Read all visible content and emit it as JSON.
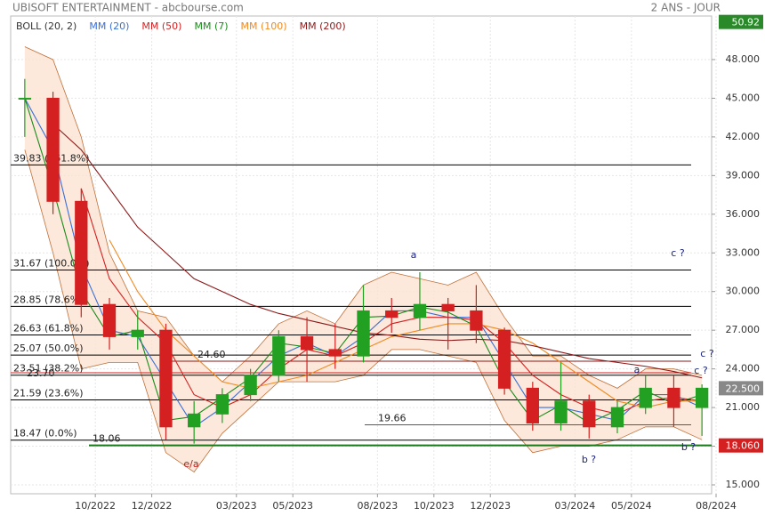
{
  "chart_data": {
    "type": "candlestick",
    "title": "UBISOFT ENTERTAINMENT - abcbourse.com",
    "period": "2 ANS - JOUR",
    "x": [
      "07/2022",
      "08/2022",
      "09/2022",
      "10/2022",
      "11/2022",
      "12/2022",
      "01/2023",
      "02/2023",
      "03/2023",
      "04/2023",
      "05/2023",
      "06/2023",
      "07/2023",
      "08/2023",
      "09/2023",
      "10/2023",
      "11/2023",
      "12/2023",
      "01/2024",
      "02/2024",
      "03/2024",
      "04/2024",
      "05/2024",
      "06/2024",
      "07/2024"
    ],
    "open": [
      45,
      45,
      37,
      29,
      26.5,
      27,
      19.5,
      20.5,
      22,
      23.5,
      26.5,
      25.5,
      25,
      28.5,
      28,
      29,
      28.5,
      27,
      22.5,
      19.8,
      21.5,
      19.5,
      21,
      22.5,
      21
    ],
    "high": [
      46.5,
      45.5,
      38,
      29.5,
      28.5,
      27.5,
      21.5,
      22.5,
      24,
      27,
      28,
      27.5,
      30.5,
      29.5,
      31.5,
      29.5,
      30.5,
      27.2,
      23,
      24.5,
      22,
      21.5,
      23.5,
      23.5,
      22.8
    ],
    "low": [
      42,
      36,
      28,
      25.5,
      25.5,
      18.5,
      18.2,
      19.8,
      21.5,
      23,
      23,
      24,
      24.5,
      26.8,
      27,
      25.5,
      26,
      22,
      19.2,
      19.2,
      18.6,
      19,
      20.5,
      19.5,
      18.8
    ],
    "close": [
      45,
      37,
      29,
      26.5,
      27,
      19.5,
      20.5,
      22,
      23.5,
      26.5,
      25.5,
      25,
      28.5,
      28,
      29,
      28.5,
      27,
      22.5,
      19.8,
      21.5,
      19.5,
      21,
      22.5,
      21,
      22.5
    ],
    "up_color": "#22a022",
    "down_color": "#d42020",
    "bollinger": {
      "name": "BOLL (20, 2)",
      "color": "#c0703a",
      "fill": "#fbe3d2",
      "upper": [
        49,
        48,
        42,
        33,
        28.5,
        28,
        25,
        23,
        25,
        27.5,
        28.5,
        27.5,
        30.5,
        31.5,
        31,
        30.5,
        31.5,
        28,
        25,
        25,
        23.5,
        22.5,
        24,
        24,
        23.5
      ],
      "lower": [
        41,
        33,
        24,
        24.5,
        24.5,
        17.5,
        16,
        19,
        21,
        23,
        23,
        23,
        23.5,
        25.5,
        25.5,
        25,
        24.5,
        20,
        17.5,
        18,
        18,
        18.5,
        19.5,
        19.5,
        18.5
      ]
    },
    "series": [
      {
        "name": "MM (20)",
        "color": "#3a6fd8",
        "values": [
          45,
          41,
          32,
          27,
          26.5,
          23,
          19.5,
          21,
          23,
          25,
          26,
          25,
          26.5,
          28.5,
          28.5,
          28,
          28,
          24.5,
          21,
          21,
          20.5,
          20,
          22,
          22,
          21
        ]
      },
      {
        "name": "MM (50)",
        "color": "#d42020",
        "values": [
          null,
          null,
          38,
          31,
          28,
          26,
          22,
          21,
          22,
          24,
          25.5,
          25,
          26,
          27.5,
          28,
          28,
          27.8,
          26,
          23.5,
          22,
          21,
          20.5,
          21.5,
          21.8,
          21.5
        ]
      },
      {
        "name": "MM (7)",
        "color": "#1a8a1a",
        "values": [
          45,
          38,
          30,
          26.5,
          27,
          20,
          20.3,
          21.8,
          23.3,
          26,
          25.7,
          25.2,
          28,
          28.1,
          28.8,
          28.4,
          27.3,
          23,
          20,
          21.2,
          19.8,
          20.8,
          22.3,
          21.3,
          22
        ]
      },
      {
        "name": "MM (100)",
        "color": "#f08a20",
        "values": [
          null,
          null,
          null,
          34,
          30,
          27,
          25,
          23,
          22.5,
          23,
          23.5,
          24.5,
          25.5,
          26.5,
          27,
          27.5,
          27.5,
          27,
          26,
          24.5,
          23,
          21.5,
          21,
          21.5,
          21.5
        ]
      },
      {
        "name": "MM (200)",
        "color": "#8b1a1a",
        "values": [
          null,
          43,
          41,
          38,
          35,
          33,
          31,
          30,
          29,
          28.3,
          27.8,
          27.3,
          26.8,
          26.6,
          26.3,
          26.2,
          26.3,
          26.2,
          25.8,
          25.3,
          24.8,
          24.5,
          24.2,
          23.8,
          23.3
        ]
      }
    ],
    "xlim": [
      "07/2022",
      "08/2024"
    ],
    "xticks": [
      "10/2022",
      "12/2022",
      "03/2023",
      "05/2023",
      "08/2023",
      "10/2023",
      "12/2023",
      "03/2024",
      "05/2024",
      "08/2024"
    ],
    "ylim": [
      14.31,
      51.38
    ],
    "yticks": [
      {
        "value": 15,
        "label": "15.000"
      },
      {
        "value": 18,
        "label": "18.000"
      },
      {
        "value": 21,
        "label": "21.000"
      },
      {
        "value": 24,
        "label": "24.000"
      },
      {
        "value": 27,
        "label": "27.000"
      },
      {
        "value": 30,
        "label": "30.000"
      },
      {
        "value": 33,
        "label": "33.000"
      },
      {
        "value": 36,
        "label": "36.000"
      },
      {
        "value": 39,
        "label": "39.000"
      },
      {
        "value": 42,
        "label": "42.000"
      },
      {
        "value": 45,
        "label": "45.000"
      },
      {
        "value": 48,
        "label": "48.000"
      }
    ],
    "grid": true,
    "levels": [
      {
        "value": 39.83,
        "label": "39.83 (161.8%)",
        "color": "#000000"
      },
      {
        "value": 31.67,
        "label": "31.67 (100.0%)",
        "color": "#000000"
      },
      {
        "value": 28.85,
        "label": "28.85 (78.6%)",
        "color": "#000000"
      },
      {
        "value": 26.63,
        "label": "26.63 (61.8%)",
        "color": "#000000"
      },
      {
        "value": 25.07,
        "label": "25.07 (50.0%)",
        "color": "#000000"
      },
      {
        "value": 23.51,
        "label": "23.51 (38.2%)",
        "color": "#000000"
      },
      {
        "value": 21.59,
        "label": "21.59 (23.6%)",
        "color": "#000000"
      },
      {
        "value": 18.47,
        "label": "18.47 (0.0%)",
        "color": "#000000"
      },
      {
        "value": 24.6,
        "label": "24.60",
        "color": "#8b1a1a"
      },
      {
        "value": 23.7,
        "label": "23.70",
        "color": "#d42020"
      },
      {
        "value": 19.66,
        "label": "19.66",
        "color": "#2a7a2a"
      },
      {
        "value": 18.06,
        "label": "18.06",
        "color": "#1a7a1a"
      }
    ],
    "price_tags": [
      {
        "value": 50.92,
        "label": "50.92",
        "color": "#2a8a2a"
      },
      {
        "value": 22.5,
        "label": "22.500",
        "color": "#888888"
      },
      {
        "value": 18.06,
        "label": "18.060",
        "color": "#d42020"
      }
    ],
    "annotations": [
      {
        "text": "a",
        "color": "#1a237e"
      },
      {
        "text": "c ?",
        "color": "#1a237e"
      },
      {
        "text": "c ?",
        "color": "#1a237e"
      },
      {
        "text": "a",
        "color": "#1a237e"
      },
      {
        "text": "c ?",
        "color": "#1a237e"
      },
      {
        "text": "e/a",
        "color": "#b71c1c"
      },
      {
        "text": "b ?",
        "color": "#1a237e"
      },
      {
        "text": "b ?",
        "color": "#1a237e"
      }
    ]
  }
}
